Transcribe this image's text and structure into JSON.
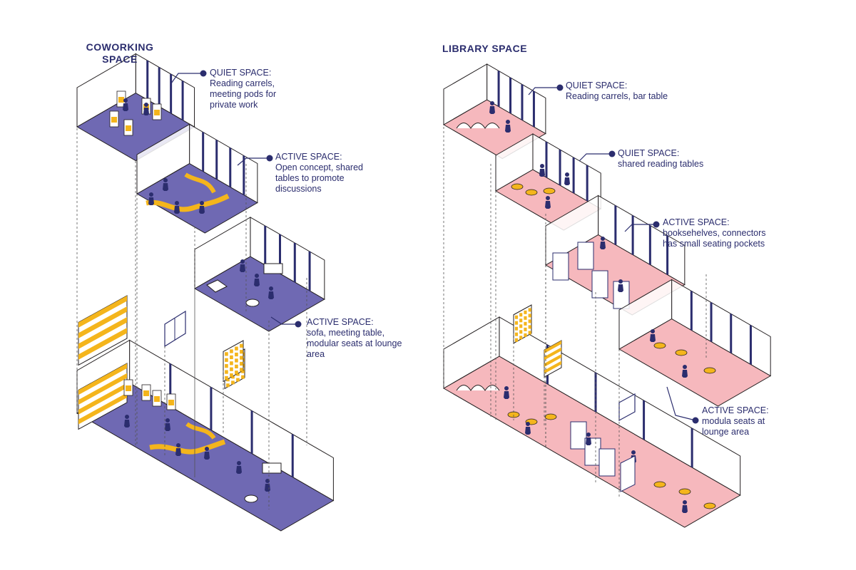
{
  "colors": {
    "coworking_floor": "#6f69b3",
    "library_floor": "#f6b8bd",
    "accent_yellow": "#f4b51c",
    "ink": "#2b2d6e",
    "outline": "#231f20"
  },
  "coworking": {
    "title_line1": "COWORKING",
    "title_line2": "SPACE",
    "labels": [
      {
        "head": "QUIET SPACE:",
        "body": "Reading carrels,\nmeeting pods for\nprivate work"
      },
      {
        "head": "ACTIVE SPACE:",
        "body": "Open concept, shared\ntables to promote\ndiscussions"
      },
      {
        "head": "ACTIVE SPACE:",
        "body": "sofa, meeting table,\nmodular seats at lounge\narea"
      }
    ]
  },
  "library": {
    "title": "LIBRARY SPACE",
    "labels": [
      {
        "head": "QUIET SPACE:",
        "body": "Reading carrels, bar table"
      },
      {
        "head": "QUIET SPACE:",
        "body": "shared reading tables"
      },
      {
        "head": "ACTIVE SPACE:",
        "body": "booksehelves, connectors\nhas small seating pockets"
      },
      {
        "head": "ACTIVE SPACE:",
        "body": "modula seats at\nlounge area"
      }
    ]
  }
}
